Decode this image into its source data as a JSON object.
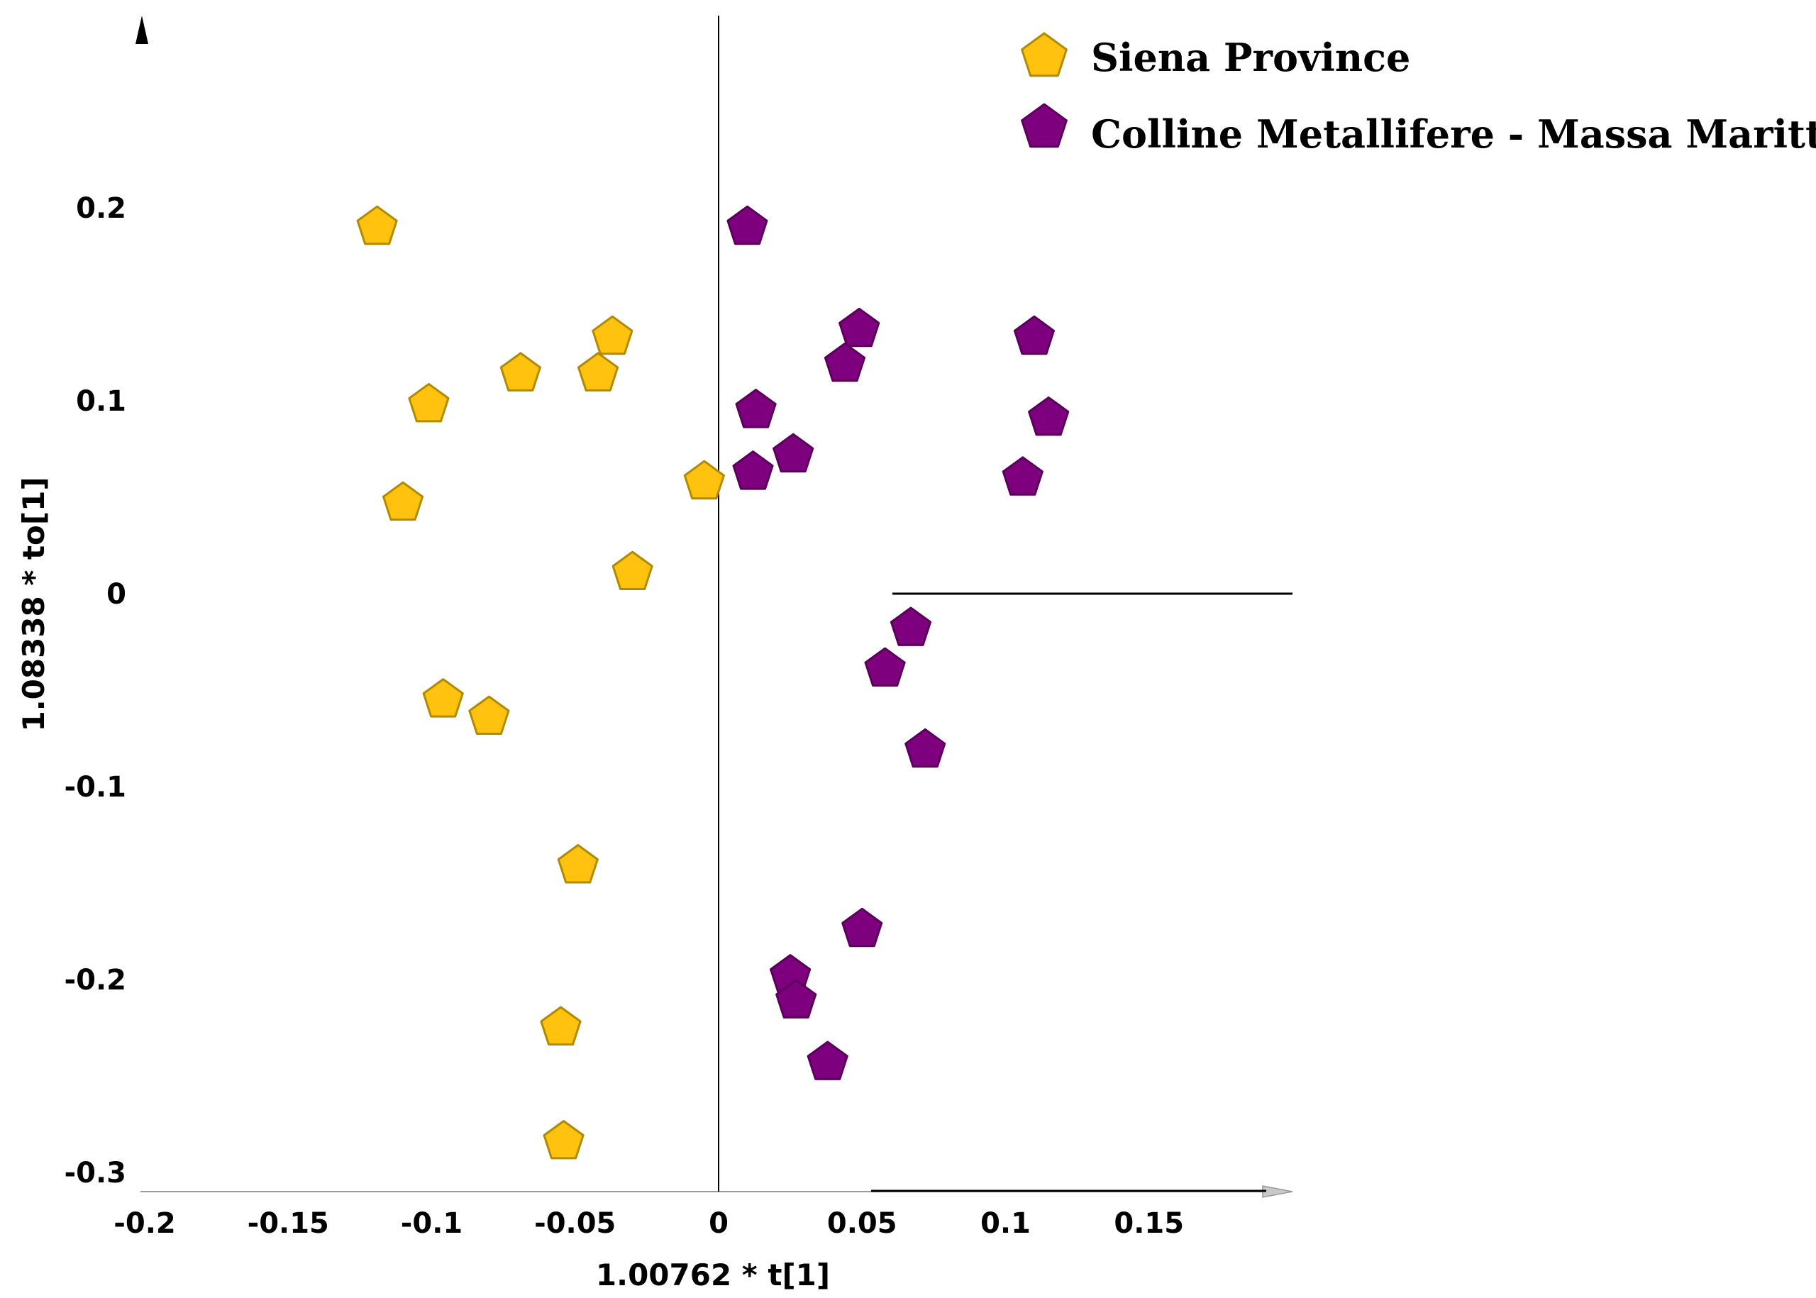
{
  "chart_data": {
    "type": "scatter",
    "title": "",
    "xlabel": "1.00762 * t[1]",
    "ylabel": "1.08338 * to[1]",
    "xlim": [
      -0.2,
      0.2
    ],
    "ylim": [
      -0.31,
      0.3
    ],
    "xticks": [
      -0.2,
      -0.15,
      -0.1,
      -0.05,
      0,
      0.05,
      0.1,
      0.15
    ],
    "xtick_labels": [
      "-0.2",
      "-0.15",
      "-0.1",
      "-0.05",
      "0",
      "0.05",
      "0.1",
      "0.15"
    ],
    "yticks": [
      0.2,
      0.1,
      0,
      -0.1,
      -0.2,
      -0.3
    ],
    "ytick_labels": [
      "0.2",
      "0.1",
      "0",
      "-0.1",
      "-0.2",
      "-0.3"
    ],
    "legend_position": "top-right",
    "marker": "pentagon",
    "series": [
      {
        "name": "Siena Province",
        "color": "#FFC20E",
        "edge_color": "#B08A00",
        "points": [
          [
            -0.119,
            0.19
          ],
          [
            -0.037,
            0.133
          ],
          [
            -0.069,
            0.114
          ],
          [
            -0.042,
            0.114
          ],
          [
            -0.101,
            0.098
          ],
          [
            -0.11,
            0.047
          ],
          [
            -0.005,
            0.058
          ],
          [
            -0.03,
            0.011
          ],
          [
            -0.096,
            -0.055
          ],
          [
            -0.08,
            -0.064
          ],
          [
            -0.049,
            -0.141
          ],
          [
            -0.055,
            -0.225
          ],
          [
            -0.054,
            -0.284
          ]
        ]
      },
      {
        "name": "Colline Metallifere - Massa Marittima",
        "color": "#7F007F",
        "edge_color": "#5A005A",
        "points": [
          [
            0.01,
            0.19
          ],
          [
            0.049,
            0.137
          ],
          [
            0.044,
            0.119
          ],
          [
            0.11,
            0.133
          ],
          [
            0.013,
            0.095
          ],
          [
            0.026,
            0.072
          ],
          [
            0.012,
            0.063
          ],
          [
            0.115,
            0.091
          ],
          [
            0.106,
            0.06
          ],
          [
            0.067,
            -0.018
          ],
          [
            0.058,
            -0.039
          ],
          [
            0.072,
            -0.081
          ],
          [
            0.05,
            -0.174
          ],
          [
            0.025,
            -0.198
          ],
          [
            0.027,
            -0.211
          ],
          [
            0.038,
            -0.243
          ]
        ]
      }
    ]
  }
}
